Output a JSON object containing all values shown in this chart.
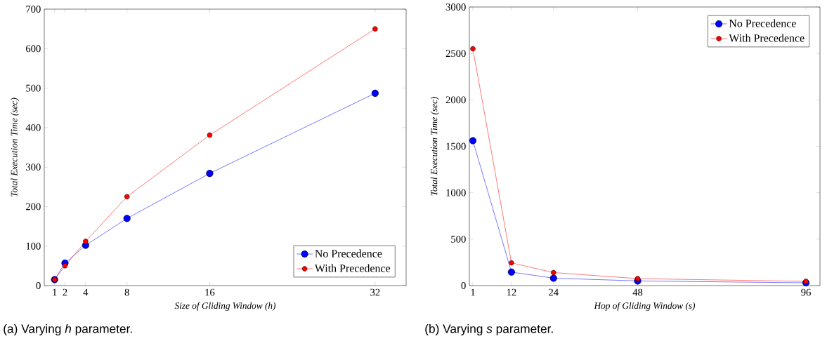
{
  "chart_data": [
    {
      "type": "line",
      "xlabel": "Size of Gliding Window (h)",
      "ylabel": "Total Execution Time (sec)",
      "x": [
        1,
        2,
        4,
        8,
        16,
        32
      ],
      "series": [
        {
          "name": "No Precedence",
          "color": "#0000ff",
          "values": [
            15,
            57,
            102,
            170,
            284,
            487
          ]
        },
        {
          "name": "With Precedence",
          "color": "#ff0000",
          "values": [
            15,
            50,
            112,
            225,
            381,
            650
          ]
        }
      ],
      "xlim": [
        0,
        35
      ],
      "ylim": [
        0,
        700
      ],
      "xticks": [
        1,
        2,
        4,
        8,
        16,
        32
      ],
      "yticks": [
        0,
        100,
        200,
        300,
        400,
        500,
        600,
        700
      ],
      "legend": "bottom right",
      "marker": "circle",
      "line_style": "solid",
      "annotations": [
        "(a) Varying *h* parameter."
      ]
    },
    {
      "type": "line",
      "xlabel": "Hop of Gliding Window (s)",
      "ylabel": "Total Execution Time (sec)",
      "x": [
        1,
        12,
        24,
        48,
        96
      ],
      "series": [
        {
          "name": "No Precedence",
          "color": "#0000ff",
          "values": [
            1560,
            145,
            80,
            50,
            30
          ]
        },
        {
          "name": "With Precedence",
          "color": "#ff0000",
          "values": [
            2550,
            245,
            140,
            75,
            45
          ]
        }
      ],
      "xlim": [
        0,
        100
      ],
      "ylim": [
        0,
        3000
      ],
      "xticks": [
        1,
        12,
        24,
        48,
        96
      ],
      "yticks": [
        0,
        500,
        1000,
        1500,
        2000,
        2500,
        3000
      ],
      "legend": "top right",
      "marker": "circle",
      "line_style": "solid",
      "annotations": [
        "(b) Varying *s* parameter."
      ]
    }
  ]
}
